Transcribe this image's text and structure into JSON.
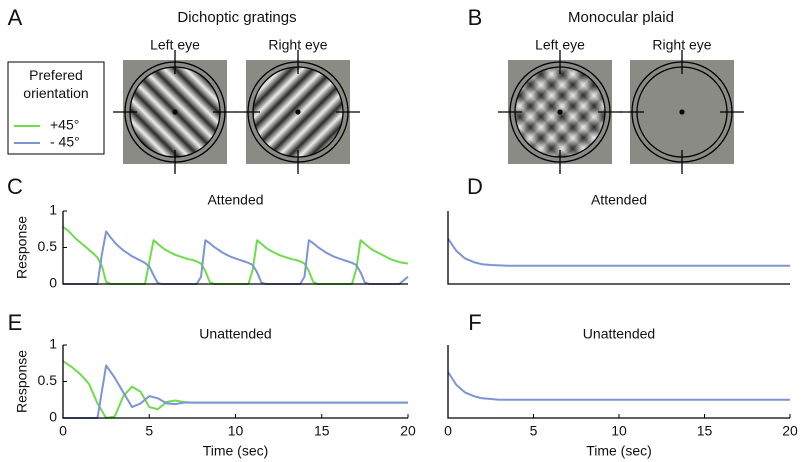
{
  "panel_labels": [
    "A",
    "B",
    "C",
    "D",
    "E",
    "F"
  ],
  "stimuli": {
    "A": {
      "title": "Dichoptic gratings",
      "left": "Left eye",
      "right": "Right eye"
    },
    "B": {
      "title": "Monocular plaid",
      "left": "Left eye",
      "right": "Right eye"
    }
  },
  "legend_title": "Prefered orientation",
  "chart_data": [
    {
      "type": "line",
      "title": "Attended",
      "ylabel": "Response",
      "xlim": [
        0,
        20
      ],
      "ylim": [
        0,
        1
      ],
      "yticks": [
        0,
        0.5,
        1
      ],
      "x": [
        0,
        0.25,
        0.5,
        0.75,
        1,
        1.25,
        1.5,
        1.75,
        2,
        2.25,
        2.5,
        2.75,
        3,
        3.25,
        3.5,
        3.75,
        4,
        4.25,
        4.5,
        4.75,
        5,
        5.25,
        5.5,
        5.75,
        6,
        6.25,
        6.5,
        6.75,
        7,
        7.25,
        7.5,
        7.75,
        8,
        8.25,
        8.5,
        8.75,
        9,
        9.25,
        9.5,
        9.75,
        10,
        10.25,
        10.5,
        10.75,
        11,
        11.25,
        11.5,
        11.75,
        12,
        12.25,
        12.5,
        12.75,
        13,
        13.25,
        13.5,
        13.75,
        14,
        14.25,
        14.5,
        14.75,
        15,
        15.25,
        15.5,
        15.75,
        16,
        16.25,
        16.5,
        16.75,
        17,
        17.25,
        17.5,
        17.75,
        18,
        18.25,
        18.5,
        18.75,
        19,
        19.25,
        19.5,
        19.75,
        20
      ],
      "series": [
        {
          "name": "+45°",
          "color": "#6fdc4c",
          "values": [
            0.78,
            0.74,
            0.68,
            0.62,
            0.57,
            0.52,
            0.47,
            0.42,
            0.36,
            0.25,
            0.03,
            0,
            0,
            0,
            0,
            0,
            0,
            0,
            0,
            0,
            0.3,
            0.6,
            0.55,
            0.5,
            0.46,
            0.43,
            0.4,
            0.38,
            0.36,
            0.34,
            0.33,
            0.31,
            0.28,
            0.18,
            0.03,
            0,
            0,
            0,
            0,
            0,
            0,
            0,
            0,
            0,
            0.2,
            0.6,
            0.55,
            0.5,
            0.46,
            0.43,
            0.4,
            0.38,
            0.36,
            0.34,
            0.33,
            0.31,
            0.28,
            0.18,
            0.03,
            0,
            0,
            0,
            0,
            0,
            0,
            0,
            0,
            0,
            0.2,
            0.6,
            0.55,
            0.5,
            0.46,
            0.43,
            0.4,
            0.37,
            0.34,
            0.32,
            0.3,
            0.29,
            0.28
          ]
        },
        {
          "name": "- 45°",
          "color": "#7d95d4",
          "values": [
            0,
            0,
            0,
            0,
            0,
            0,
            0,
            0,
            0,
            0.4,
            0.72,
            0.64,
            0.57,
            0.51,
            0.46,
            0.42,
            0.38,
            0.35,
            0.32,
            0.29,
            0.24,
            0.12,
            0.01,
            0,
            0,
            0,
            0,
            0,
            0,
            0,
            0,
            0,
            0.1,
            0.6,
            0.56,
            0.51,
            0.47,
            0.43,
            0.4,
            0.37,
            0.35,
            0.33,
            0.31,
            0.29,
            0.26,
            0.16,
            0.02,
            0,
            0,
            0,
            0,
            0,
            0,
            0,
            0,
            0,
            0.1,
            0.6,
            0.56,
            0.51,
            0.47,
            0.43,
            0.4,
            0.37,
            0.35,
            0.33,
            0.31,
            0.29,
            0.26,
            0.16,
            0.02,
            0,
            0,
            0,
            0,
            0,
            0,
            0,
            0,
            0.05,
            0.1
          ]
        }
      ]
    },
    {
      "type": "line",
      "title": "Attended",
      "xlim": [
        0,
        20
      ],
      "ylim": [
        0,
        1
      ],
      "x": [
        0,
        0.5,
        1,
        1.5,
        2,
        2.5,
        3,
        3.5,
        4,
        4.5,
        5,
        5.5,
        6,
        6.5,
        7,
        7.5,
        8,
        8.5,
        9,
        9.5,
        10,
        10.5,
        11,
        11.5,
        12,
        12.5,
        13,
        13.5,
        14,
        14.5,
        15,
        15.5,
        16,
        16.5,
        17,
        17.5,
        18,
        18.5,
        19,
        19.5,
        20
      ],
      "series": [
        {
          "color": "#7d95d4",
          "values": [
            0.62,
            0.45,
            0.35,
            0.3,
            0.27,
            0.26,
            0.255,
            0.25,
            0.25,
            0.25,
            0.25,
            0.25,
            0.25,
            0.25,
            0.25,
            0.25,
            0.25,
            0.25,
            0.25,
            0.25,
            0.25,
            0.25,
            0.25,
            0.25,
            0.25,
            0.25,
            0.25,
            0.25,
            0.25,
            0.25,
            0.25,
            0.25,
            0.25,
            0.25,
            0.25,
            0.25,
            0.25,
            0.25,
            0.25,
            0.25,
            0.25
          ]
        }
      ]
    },
    {
      "type": "line",
      "title": "Unattended",
      "ylabel": "Response",
      "xlabel": "Time (sec)",
      "xlim": [
        0,
        20
      ],
      "ylim": [
        0,
        1
      ],
      "yticks": [
        0,
        0.5,
        1
      ],
      "xticks": [
        0,
        5,
        10,
        15,
        20
      ],
      "x": [
        0,
        0.5,
        1,
        1.5,
        2,
        2.5,
        3,
        3.5,
        4,
        4.5,
        5,
        5.5,
        6,
        6.5,
        7,
        7.5,
        8,
        8.5,
        9,
        9.5,
        10,
        10.5,
        11,
        11.5,
        12,
        12.5,
        13,
        13.5,
        14,
        14.5,
        15,
        15.5,
        16,
        16.5,
        17,
        17.5,
        18,
        18.5,
        19,
        19.5,
        20
      ],
      "series": [
        {
          "color": "#6fdc4c",
          "values": [
            0.78,
            0.7,
            0.6,
            0.47,
            0.2,
            0,
            0.02,
            0.3,
            0.43,
            0.36,
            0.15,
            0.12,
            0.22,
            0.24,
            0.22,
            0.21,
            0.21,
            0.21,
            0.21,
            0.21,
            0.21,
            0.21,
            0.21,
            0.21,
            0.21,
            0.21,
            0.21,
            0.21,
            0.21,
            0.21,
            0.21,
            0.21,
            0.21,
            0.21,
            0.21,
            0.21,
            0.21,
            0.21,
            0.21,
            0.21,
            0.21
          ]
        },
        {
          "color": "#7d95d4",
          "values": [
            0,
            0,
            0,
            0,
            0,
            0.72,
            0.55,
            0.35,
            0.15,
            0.2,
            0.3,
            0.27,
            0.2,
            0.19,
            0.21,
            0.21,
            0.21,
            0.21,
            0.21,
            0.21,
            0.21,
            0.21,
            0.21,
            0.21,
            0.21,
            0.21,
            0.21,
            0.21,
            0.21,
            0.21,
            0.21,
            0.21,
            0.21,
            0.21,
            0.21,
            0.21,
            0.21,
            0.21,
            0.21,
            0.21,
            0.21
          ]
        }
      ]
    },
    {
      "type": "line",
      "title": "Unattended",
      "xlabel": "Time (sec)",
      "xlim": [
        0,
        20
      ],
      "ylim": [
        0,
        1
      ],
      "xticks": [
        0,
        5,
        10,
        15,
        20
      ],
      "x": [
        0,
        0.5,
        1,
        1.5,
        2,
        2.5,
        3,
        3.5,
        4,
        4.5,
        5,
        5.5,
        6,
        6.5,
        7,
        7.5,
        8,
        8.5,
        9,
        9.5,
        10,
        10.5,
        11,
        11.5,
        12,
        12.5,
        13,
        13.5,
        14,
        14.5,
        15,
        15.5,
        16,
        16.5,
        17,
        17.5,
        18,
        18.5,
        19,
        19.5,
        20
      ],
      "series": [
        {
          "color": "#7d95d4",
          "values": [
            0.63,
            0.45,
            0.35,
            0.3,
            0.27,
            0.26,
            0.25,
            0.25,
            0.25,
            0.25,
            0.25,
            0.25,
            0.25,
            0.25,
            0.25,
            0.25,
            0.25,
            0.25,
            0.25,
            0.25,
            0.25,
            0.25,
            0.25,
            0.25,
            0.25,
            0.25,
            0.25,
            0.25,
            0.25,
            0.25,
            0.25,
            0.25,
            0.25,
            0.25,
            0.25,
            0.25,
            0.25,
            0.25,
            0.25,
            0.25,
            0.25
          ]
        }
      ]
    }
  ]
}
